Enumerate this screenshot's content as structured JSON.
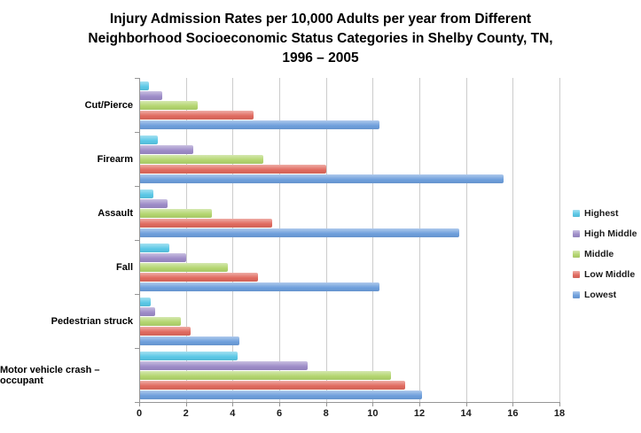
{
  "title": {
    "line1": "Injury Admission Rates per 10,000 Adults per year from Different",
    "line2": "Neighborhood Socioeconomic Status Categories in Shelby County, TN,",
    "line3": "1996 – 2005"
  },
  "chart_data": {
    "type": "bar",
    "orientation": "horizontal",
    "title": "Injury Admission Rates per 10,000 Adults per year from Different Neighborhood Socioeconomic Status Categories in Shelby County, TN, 1996 – 2005",
    "categories": [
      "Cut/Pierce",
      "Firearm",
      "Assault",
      "Fall",
      "Pedestrian struck",
      "Motor vehicle crash – occupant"
    ],
    "series": [
      {
        "name": "Highest",
        "color": "#5BC8E6",
        "values": [
          0.4,
          0.8,
          0.6,
          1.3,
          0.5,
          4.2
        ]
      },
      {
        "name": "High Middle",
        "color": "#9D8CC8",
        "values": [
          1.0,
          2.3,
          1.2,
          2.0,
          0.7,
          7.2
        ]
      },
      {
        "name": "Middle",
        "color": "#B3D56F",
        "values": [
          2.5,
          5.3,
          3.1,
          3.8,
          1.8,
          10.8
        ]
      },
      {
        "name": "Low Middle",
        "color": "#E06A5F",
        "values": [
          4.9,
          8.0,
          5.7,
          5.1,
          2.2,
          11.4
        ]
      },
      {
        "name": "Lowest",
        "color": "#6E9FDC",
        "values": [
          10.3,
          15.6,
          13.7,
          10.3,
          4.3,
          12.1
        ]
      }
    ],
    "xlabel": "",
    "ylabel": "",
    "xlim": [
      0,
      18
    ],
    "x_ticks": [
      0,
      2,
      4,
      6,
      8,
      10,
      12,
      14,
      16,
      18
    ],
    "grid": true,
    "legend_position": "right",
    "legend_entries": [
      "Highest",
      "High Middle",
      "Middle",
      "Low Middle",
      "Lowest"
    ]
  }
}
